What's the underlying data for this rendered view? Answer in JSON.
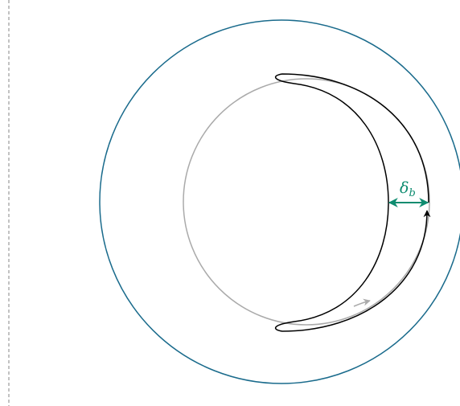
{
  "diagram": {
    "label": {
      "symbol": "δ",
      "subscript": "b"
    },
    "colors": {
      "outer_circle": "#1a6b8c",
      "inner_circle": "#aaaaaa",
      "crescent": "#000000",
      "delta_arrow": "#0e8c70",
      "divider": "#999999"
    }
  }
}
